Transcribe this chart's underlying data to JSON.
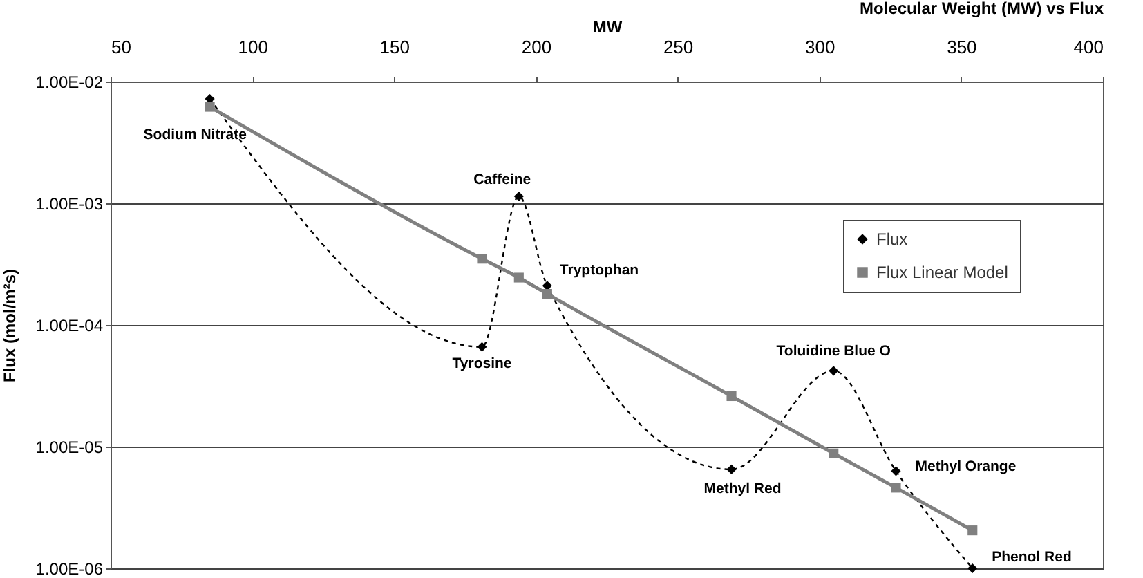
{
  "chart_data": {
    "type": "line",
    "title": "Molecular Weight (MW) vs Flux",
    "xlabel": "MW",
    "ylabel": "Flux (mol/m²s)",
    "x": [
      85,
      181,
      194,
      204,
      269,
      305,
      327,
      354
    ],
    "series": [
      {
        "name": "Flux",
        "color": "#000000",
        "marker": "diamond",
        "line_style": "dashed",
        "values": [
          0.0072,
          6.6e-05,
          0.00114,
          0.00021,
          6.5e-06,
          4.2e-05,
          6.3e-06,
          1e-06
        ]
      },
      {
        "name": "Flux Linear Model",
        "color": "#808080",
        "marker": "square",
        "line_style": "solid",
        "values": [
          0.0062,
          0.00035,
          0.000245,
          0.00018,
          2.6e-05,
          8.8e-06,
          4.6e-06,
          2.05e-06
        ]
      }
    ],
    "xlim": [
      50,
      400
    ],
    "xticks": [
      50,
      100,
      150,
      200,
      250,
      300,
      350,
      400
    ],
    "log": "y",
    "ylim": [
      1e-06,
      0.01
    ],
    "yticks": [
      {
        "value": 1e-06,
        "label": "1.00E-06"
      },
      {
        "value": 1e-05,
        "label": "1.00E-05"
      },
      {
        "value": 0.0001,
        "label": "1.00E-04"
      },
      {
        "value": 0.001,
        "label": "1.00E-03"
      },
      {
        "value": 0.01,
        "label": "1.00E-02"
      }
    ],
    "grid": "y",
    "legend": "right",
    "annotations": [
      {
        "text": "Sodium Nitrate",
        "x": 85,
        "y": 0.0072
      },
      {
        "text": "Tyrosine",
        "x": 181,
        "y": 6.6e-05
      },
      {
        "text": "Caffeine",
        "x": 194,
        "y": 0.00114
      },
      {
        "text": "Tryptophan",
        "x": 204,
        "y": 0.00021
      },
      {
        "text": "Methyl Red",
        "x": 269,
        "y": 6.5e-06
      },
      {
        "text": "Toluidine Blue O",
        "x": 305,
        "y": 4.2e-05
      },
      {
        "text": "Methyl Orange",
        "x": 327,
        "y": 6.3e-06
      },
      {
        "text": "Phenol Red",
        "x": 354,
        "y": 1e-06
      }
    ]
  }
}
